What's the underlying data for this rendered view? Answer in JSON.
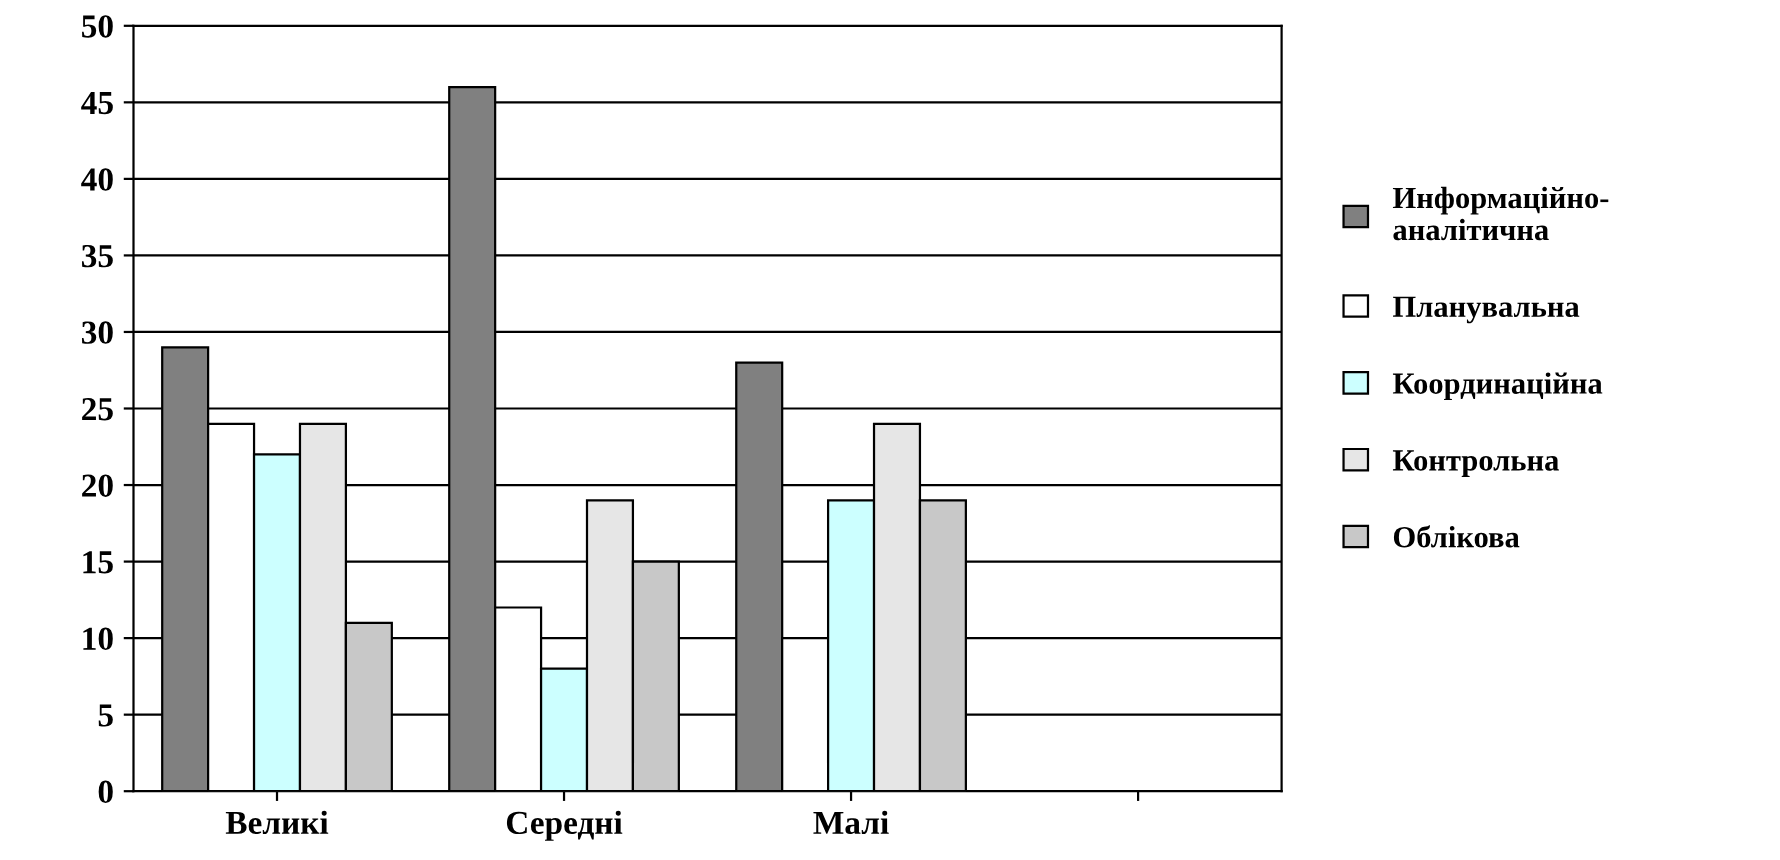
{
  "chart_data": {
    "type": "bar",
    "categories": [
      "Великі",
      "Середні",
      "Малі",
      null
    ],
    "series": [
      {
        "name": "Информаційно-\nаналітична",
        "color": "#808080",
        "values": [
          29,
          46,
          28,
          null
        ]
      },
      {
        "name": "Планувальна",
        "color": "#ffffff",
        "values": [
          24,
          12,
          10,
          null
        ]
      },
      {
        "name": "Координаційна",
        "color": "#ccffff",
        "values": [
          22,
          8,
          19,
          null
        ]
      },
      {
        "name": "Контрольна",
        "color": "#e6e6e6",
        "values": [
          24,
          19,
          24,
          null
        ]
      },
      {
        "name": "Облікова",
        "color": "#c8c8c8",
        "values": [
          11,
          15,
          19,
          null
        ]
      }
    ],
    "ylim": [
      0,
      50
    ],
    "yticks": [
      0,
      5,
      10,
      15,
      20,
      25,
      30,
      35,
      40,
      45,
      50
    ],
    "grid": "y",
    "legend": "right"
  }
}
